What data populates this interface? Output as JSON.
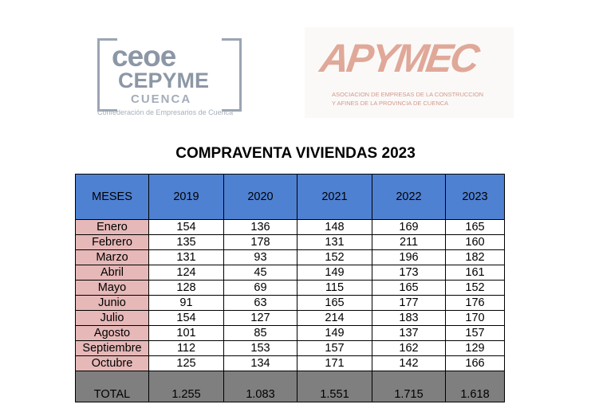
{
  "logos": {
    "ceoe": {
      "line1": "ceoe",
      "line2": "CEPYME",
      "line3": "CUENCA",
      "subtitle": "Confederación de Empresarios de Cuenca"
    },
    "apymec": {
      "name": "APYMEC",
      "subtitle_line1": "ASOCIACION DE EMPRESAS DE LA CONSTRUCCION",
      "subtitle_line2": "Y AFINES DE LA PROVINCIA DE CUENCA"
    }
  },
  "title": "COMPRAVENTA VIVIENDAS 2023",
  "table": {
    "headers": [
      "MESES",
      "2019",
      "2020",
      "2021",
      "2022",
      "2023"
    ],
    "rows": [
      {
        "month": "Enero",
        "values": [
          "154",
          "136",
          "148",
          "169",
          "165"
        ]
      },
      {
        "month": "Febrero",
        "values": [
          "135",
          "178",
          "131",
          "211",
          "160"
        ]
      },
      {
        "month": "Marzo",
        "values": [
          "131",
          "93",
          "152",
          "196",
          "182"
        ]
      },
      {
        "month": "Abril",
        "values": [
          "124",
          "45",
          "149",
          "173",
          "161"
        ]
      },
      {
        "month": "Mayo",
        "values": [
          "128",
          "69",
          "115",
          "165",
          "152"
        ]
      },
      {
        "month": "Junio",
        "values": [
          "91",
          "63",
          "165",
          "177",
          "176"
        ]
      },
      {
        "month": "Julio",
        "values": [
          "154",
          "127",
          "214",
          "183",
          "170"
        ]
      },
      {
        "month": "Agosto",
        "values": [
          "101",
          "85",
          "149",
          "137",
          "157"
        ]
      },
      {
        "month": "Septiembre",
        "values": [
          "112",
          "153",
          "157",
          "162",
          "129"
        ]
      },
      {
        "month": "Octubre",
        "values": [
          "125",
          "134",
          "171",
          "142",
          "166"
        ]
      }
    ],
    "total": {
      "label": "TOTAL",
      "values": [
        "1.255",
        "1.083",
        "1.551",
        "1.715",
        "1.618"
      ]
    }
  },
  "colors": {
    "header_bg": "#4f81d2",
    "month_bg": "#e6b8b8",
    "total_bg": "#7f7f7f"
  }
}
